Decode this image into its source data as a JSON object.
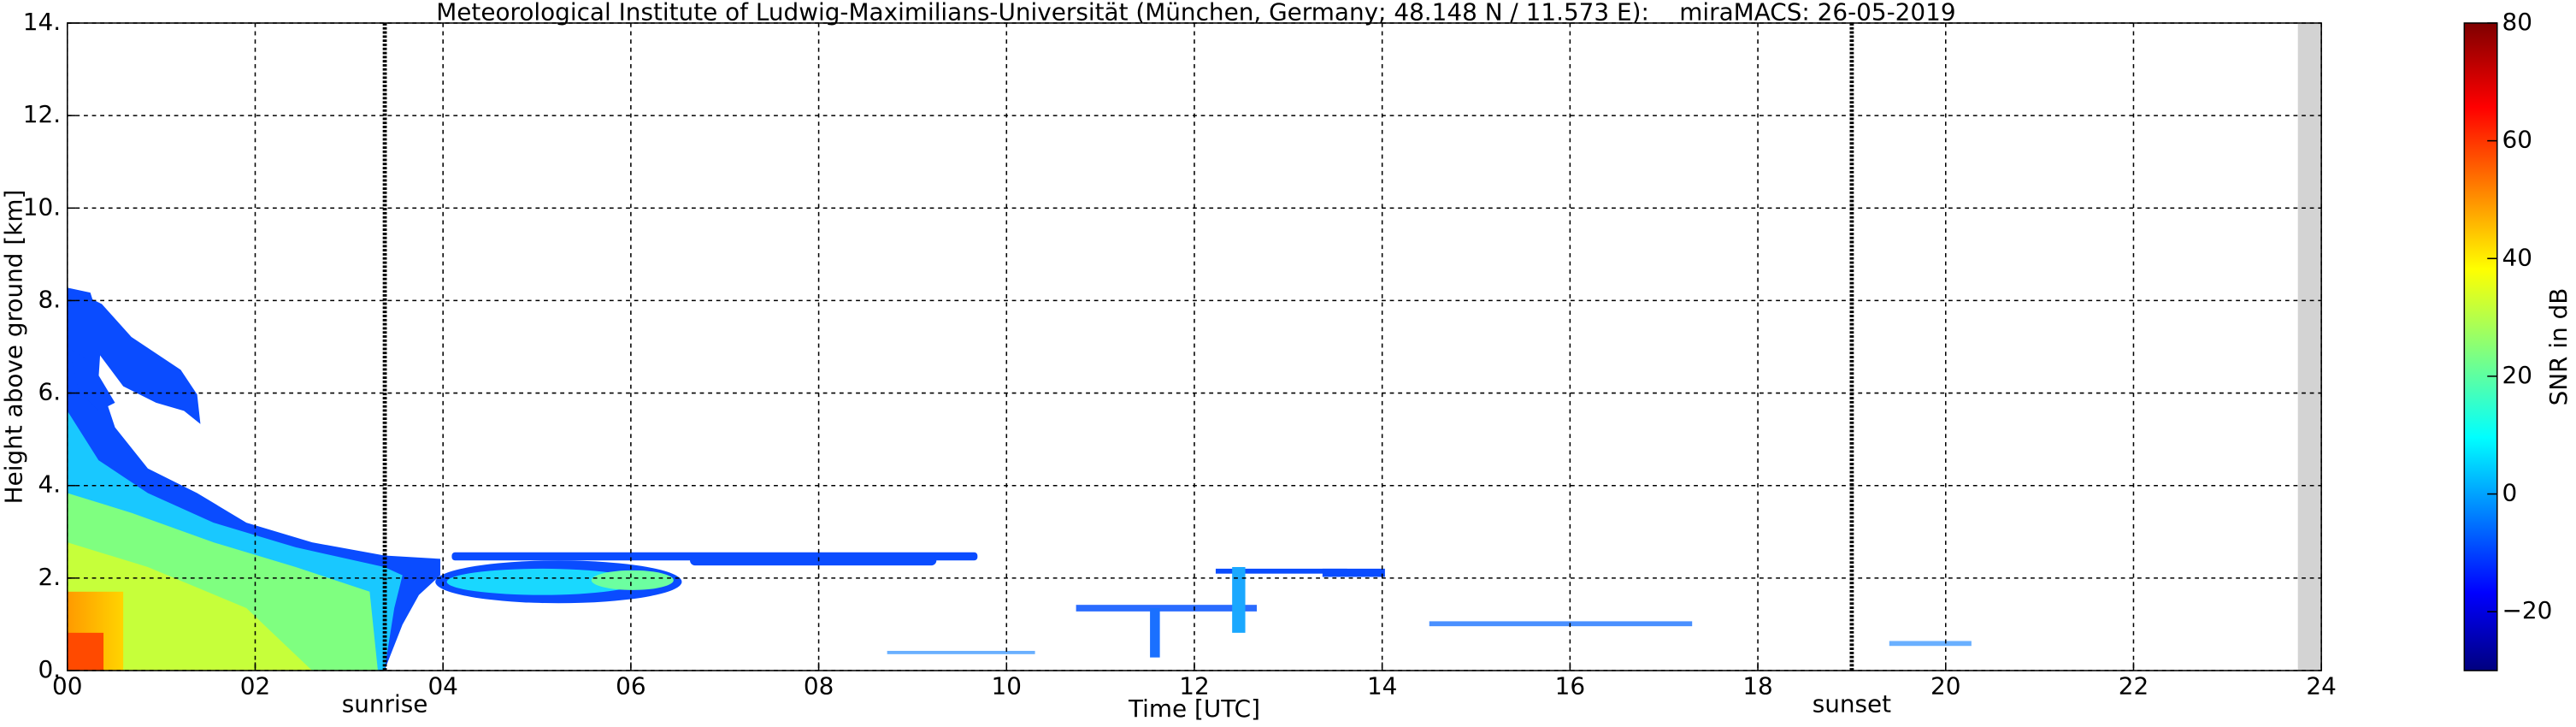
{
  "chart_data": {
    "type": "time-height",
    "title": "Meteorological Institute of Ludwig-Maximilians-Universität (München, Germany; 48.148 N / 11.573 E):    miraMACS: 26-05-2019",
    "xlabel": "Time [UTC]",
    "ylabel": "Height above ground [km]",
    "colorbar_label": "SNR in dB",
    "colormap": "jet",
    "xlim": [
      0,
      24
    ],
    "xticks": [
      {
        "value": 0,
        "label": "00"
      },
      {
        "value": 2,
        "label": "02"
      },
      {
        "value": 4,
        "label": "04"
      },
      {
        "value": 6,
        "label": "06"
      },
      {
        "value": 8,
        "label": "08"
      },
      {
        "value": 10,
        "label": "10"
      },
      {
        "value": 12,
        "label": "12"
      },
      {
        "value": 14,
        "label": "14"
      },
      {
        "value": 16,
        "label": "16"
      },
      {
        "value": 18,
        "label": "18"
      },
      {
        "value": 20,
        "label": "20"
      },
      {
        "value": 22,
        "label": "22"
      },
      {
        "value": 24,
        "label": "24"
      }
    ],
    "ylim": [
      0,
      14
    ],
    "yticks": [
      {
        "value": 0,
        "label": "0."
      },
      {
        "value": 2,
        "label": "2."
      },
      {
        "value": 4,
        "label": "4."
      },
      {
        "value": 6,
        "label": "6."
      },
      {
        "value": 8,
        "label": "8."
      },
      {
        "value": 10,
        "label": "10."
      },
      {
        "value": 12,
        "label": "12."
      },
      {
        "value": 14,
        "label": "14."
      }
    ],
    "clim": [
      -30,
      80
    ],
    "cticks": [
      {
        "value": -20,
        "label": "−20"
      },
      0,
      20,
      40,
      60,
      80
    ],
    "grid": true,
    "annotations": [
      {
        "label": "sunrise",
        "x": 3.38
      },
      {
        "label": "sunset",
        "x": 19.0
      }
    ],
    "no_data_x": [
      23.75,
      24
    ]
  }
}
